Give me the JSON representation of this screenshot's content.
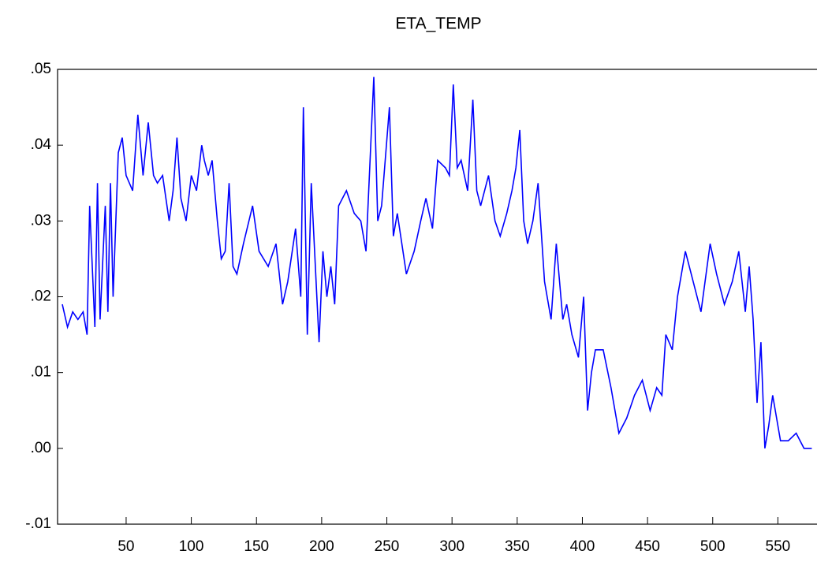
{
  "chart_data": {
    "type": "line",
    "title": "ETA_TEMP",
    "x": [
      1,
      5,
      9,
      13,
      17,
      20,
      22,
      26,
      28,
      30,
      34,
      36,
      38,
      40,
      44,
      47,
      50,
      55,
      59,
      63,
      67,
      71,
      74,
      78,
      83,
      86,
      89,
      92,
      96,
      100,
      104,
      108,
      110,
      113,
      116,
      120,
      123,
      126,
      129,
      132,
      135,
      140,
      147,
      152,
      159,
      165,
      170,
      174,
      180,
      184,
      186,
      189,
      192,
      198,
      201,
      204,
      207,
      210,
      213,
      219,
      225,
      230,
      234,
      240,
      243,
      246,
      252,
      255,
      258,
      265,
      271,
      276,
      280,
      285,
      289,
      295,
      298,
      301,
      304,
      307,
      312,
      316,
      319,
      322,
      328,
      333,
      337,
      342,
      346,
      349,
      352,
      355,
      358,
      362,
      366,
      371,
      376,
      380,
      385,
      388,
      392,
      397,
      401,
      404,
      407,
      410,
      416,
      422,
      428,
      434,
      440,
      446,
      452,
      457,
      461,
      464,
      469,
      473,
      479,
      485,
      491,
      498,
      503,
      509,
      515,
      520,
      525,
      528,
      531,
      534,
      537,
      540,
      543,
      546,
      552,
      558,
      564,
      570,
      576
    ],
    "series": [
      {
        "name": "ETA_TEMP",
        "color": "#0000ff",
        "values": [
          0.019,
          0.016,
          0.018,
          0.017,
          0.018,
          0.015,
          0.032,
          0.016,
          0.035,
          0.017,
          0.032,
          0.018,
          0.035,
          0.02,
          0.039,
          0.041,
          0.036,
          0.034,
          0.044,
          0.036,
          0.043,
          0.036,
          0.035,
          0.036,
          0.03,
          0.034,
          0.041,
          0.033,
          0.03,
          0.036,
          0.034,
          0.04,
          0.038,
          0.036,
          0.038,
          0.03,
          0.025,
          0.026,
          0.035,
          0.024,
          0.023,
          0.027,
          0.032,
          0.026,
          0.024,
          0.027,
          0.019,
          0.022,
          0.029,
          0.02,
          0.045,
          0.015,
          0.035,
          0.014,
          0.026,
          0.02,
          0.024,
          0.019,
          0.032,
          0.034,
          0.031,
          0.03,
          0.026,
          0.049,
          0.03,
          0.032,
          0.045,
          0.028,
          0.031,
          0.023,
          0.026,
          0.03,
          0.033,
          0.029,
          0.038,
          0.037,
          0.036,
          0.048,
          0.037,
          0.038,
          0.034,
          0.046,
          0.034,
          0.032,
          0.036,
          0.03,
          0.028,
          0.031,
          0.034,
          0.037,
          0.042,
          0.03,
          0.027,
          0.03,
          0.035,
          0.022,
          0.017,
          0.027,
          0.017,
          0.019,
          0.015,
          0.012,
          0.02,
          0.005,
          0.01,
          0.013,
          0.013,
          0.008,
          0.002,
          0.004,
          0.007,
          0.009,
          0.005,
          0.008,
          0.007,
          0.015,
          0.013,
          0.02,
          0.026,
          0.022,
          0.018,
          0.027,
          0.023,
          0.019,
          0.022,
          0.026,
          0.018,
          0.024,
          0.017,
          0.006,
          0.014,
          0.0,
          0.003,
          0.007,
          0.001,
          0.001,
          0.002,
          0.0,
          0.0
        ]
      }
    ],
    "xlim": [
      -2.6,
      580
    ],
    "ylim": [
      -0.01,
      0.05
    ],
    "xticks": [
      50,
      100,
      150,
      200,
      250,
      300,
      350,
      400,
      450,
      500,
      550
    ],
    "yticks": [
      {
        "value": -0.01,
        "label": "-.01"
      },
      {
        "value": 0.0,
        "label": ".00"
      },
      {
        "value": 0.01,
        "label": ".01"
      },
      {
        "value": 0.02,
        "label": ".02"
      },
      {
        "value": 0.03,
        "label": ".03"
      },
      {
        "value": 0.04,
        "label": ".04"
      },
      {
        "value": 0.05,
        "label": ".05"
      }
    ]
  }
}
